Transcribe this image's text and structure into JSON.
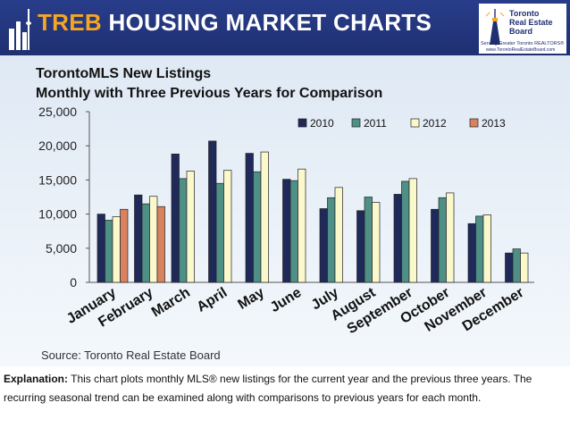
{
  "header": {
    "brand": "TREB",
    "title": "HOUSING MARKET CHARTS",
    "logo_line1": "Toronto",
    "logo_line2": "Real Estate Board",
    "logo_tagline": "Serving Greater Toronto REALTORS®",
    "logo_url": "www.TorontoRealEstateBoard.com"
  },
  "colors": {
    "header_bg": "#1f2f72",
    "brand_orange": "#f5a623"
  },
  "chart_data": {
    "type": "bar",
    "title": "TorontoMLS New Listings",
    "subtitle": "Monthly with Three Previous Years for Comparison",
    "xlabel": "",
    "ylabel": "",
    "ylim": [
      0,
      25000
    ],
    "yticks": [
      "0",
      "5,000",
      "10,000",
      "15,000",
      "20,000",
      "25,000"
    ],
    "grid": false,
    "legend_position": "top-right",
    "categories": [
      "January",
      "February",
      "March",
      "April",
      "May",
      "June",
      "July",
      "August",
      "September",
      "October",
      "November",
      "December"
    ],
    "series": [
      {
        "name": "2010",
        "color": "#1f2a5a",
        "values": [
          10000,
          12800,
          18800,
          20700,
          18900,
          15100,
          10800,
          10500,
          12900,
          10700,
          8600,
          4300
        ]
      },
      {
        "name": "2011",
        "color": "#4e8f86",
        "values": [
          9100,
          11500,
          15200,
          14500,
          16200,
          14900,
          12400,
          12500,
          14800,
          12400,
          9700,
          4900
        ]
      },
      {
        "name": "2012",
        "color": "#fbf9cc",
        "values": [
          9600,
          12600,
          16300,
          16400,
          19100,
          16600,
          13900,
          11700,
          15200,
          13100,
          9900,
          4300
        ]
      },
      {
        "name": "2013",
        "color": "#d9825f",
        "values": [
          10700,
          11100,
          null,
          null,
          null,
          null,
          null,
          null,
          null,
          null,
          null,
          null
        ]
      }
    ]
  },
  "source_text": "Source: Toronto Real Estate Board",
  "explanation": {
    "label": "Explanation:",
    "text": " This chart plots monthly MLS® new listings for the current year and the previous three years. The recurring seasonal trend can be examined along with comparisons to previous years for each month."
  }
}
